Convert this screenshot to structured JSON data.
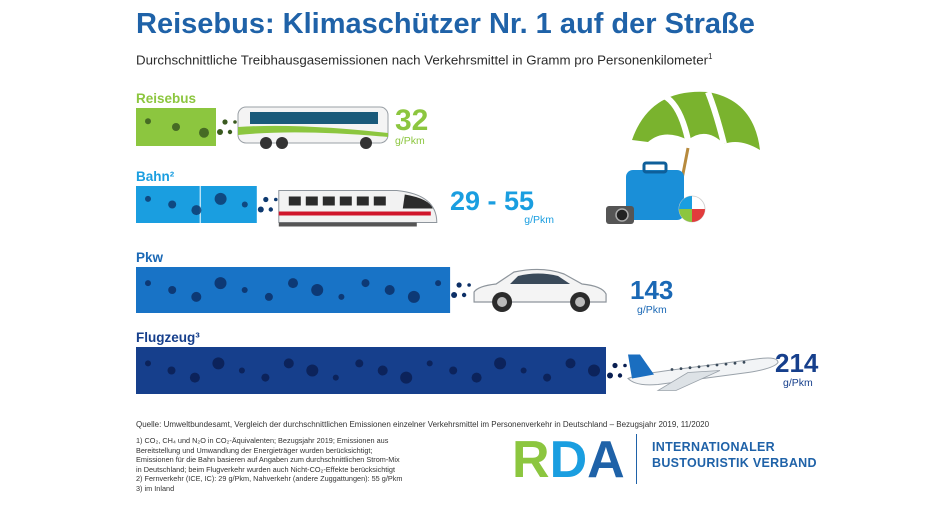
{
  "header": {
    "title": "Reisebus: Klimaschützer Nr. 1 auf der Straße",
    "subtitle": "Durchschnittliche Treibhausgasemissionen nach Verkehrsmittel in Gramm pro Personenkilometer",
    "subtitle_sup": "1"
  },
  "chart_data": {
    "type": "bar",
    "categories": [
      "Reisebus",
      "Bahn²",
      "Pkw",
      "Flugzeug³"
    ],
    "values": [
      32,
      55,
      143,
      214
    ],
    "value_labels": [
      "32",
      "29 - 55",
      "143",
      "214"
    ],
    "unit": "g/Pkm",
    "bar_colors": [
      "#8cc63f",
      "#1a9ee0",
      "#1873c6",
      "#163f8c"
    ],
    "label_colors": [
      "#8cc63f",
      "#1a9ee0",
      "#1a68b5",
      "#163f8c"
    ],
    "bahn_range": [
      29,
      55
    ],
    "xlim": [
      0,
      214
    ]
  },
  "footer": {
    "source": "Quelle: Umweltbundesamt, Vergleich der durchschnittlichen Emissionen einzelner Verkehrsmittel im Personenverkehr in Deutschland – Bezugsjahr 2019, 11/2020",
    "notes": [
      "1) CO₂, CH₄ und N₂O in CO₂-Äquivalenten; Bezugsjahr 2019; Emissionen aus",
      "Bereitstellung und Umwandlung der Energieträger wurden berücksichtigt;",
      "Emissionen für die Bahn basieren auf Angaben zum durchschnittlichen Strom-Mix",
      "in Deutschland; beim Flugverkehr wurden auch Nicht-CO₂-Effekte berücksichtigt",
      "2) Fernverkehr (ICE, IC): 29 g/Pkm, Nahverkehr (andere Zuggattungen): 55 g/Pkm",
      "3) im Inland"
    ]
  },
  "logo": {
    "text": "RDA",
    "org_line1": "INTERNATIONALER",
    "org_line2": "BUSTOURISTIK VERBAND",
    "colors": [
      "#8cc63f",
      "#1a9ee0",
      "#1f62a8"
    ]
  },
  "icons": [
    "bus-icon",
    "train-icon",
    "car-icon",
    "airplane-icon",
    "beach-umbrella-icon",
    "suitcase-icon",
    "camera-icon",
    "beach-ball-icon"
  ]
}
